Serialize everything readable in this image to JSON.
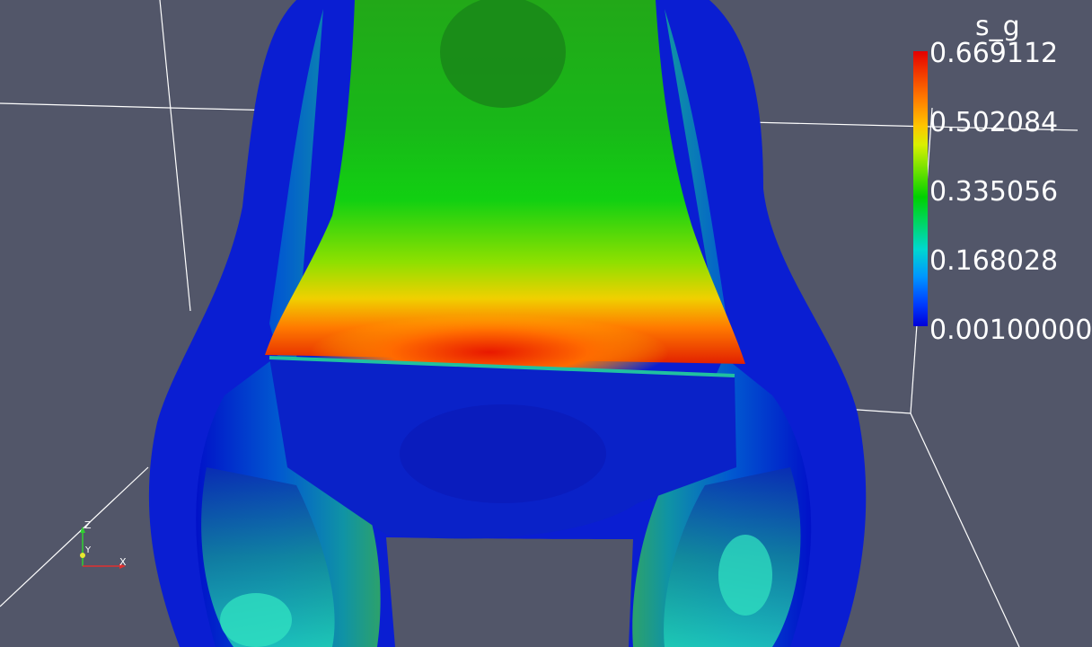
{
  "scalar_bar": {
    "title": "s_g",
    "ticks": [
      "0.669112",
      "0.502084",
      "0.335056",
      "0.168028",
      "0.00100000"
    ]
  },
  "orientation_axes": {
    "z_label": "Z",
    "y_label": "Y",
    "x_label": "X"
  },
  "colors": {
    "background": "#525669",
    "outline": "#ffffff",
    "x_axis": "#e03030",
    "y_axis": "#e8e830",
    "z_axis": "#30d030"
  }
}
